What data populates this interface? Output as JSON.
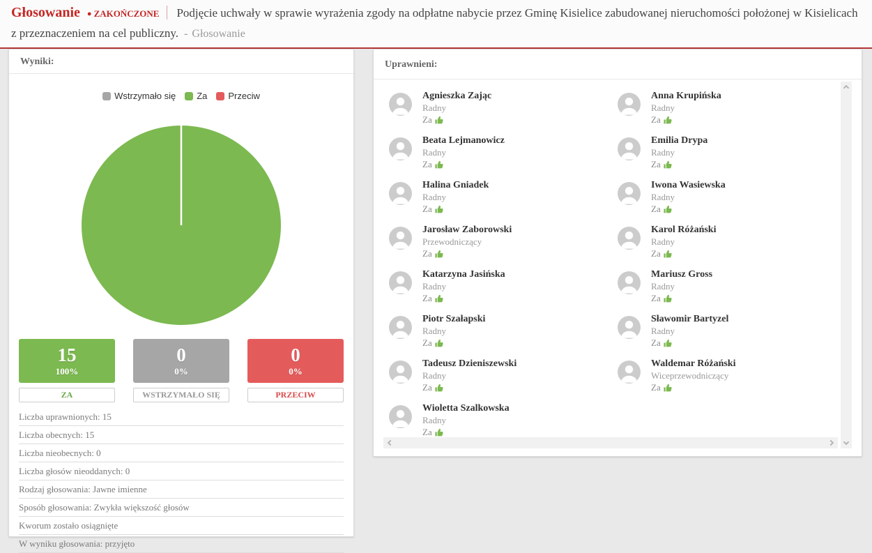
{
  "header": {
    "title": "Głosowanie",
    "status_bullet": "●",
    "status": "ZAKOŃCZONE",
    "subject": "Podjęcie uchwały w sprawie wyrażenia zgody na odpłatne nabycie przez Gminę Kisielice zabudowanej nieruchomości położonej w Kisielicach z przeznaczeniem na cel publiczny.",
    "suffix_separator": "-",
    "suffix": "Głosowanie"
  },
  "results_panel": {
    "title": "Wyniki:",
    "legend": [
      {
        "label": "Wstrzymało się",
        "color": "#a6a6a6"
      },
      {
        "label": "Za",
        "color": "#7cb950"
      },
      {
        "label": "Przeciw",
        "color": "#e45b5b"
      }
    ],
    "boxes": [
      {
        "count": "15",
        "percent": "100%",
        "label": "ZA",
        "color": "#7cb950",
        "label_color": "#6aa844"
      },
      {
        "count": "0",
        "percent": "0%",
        "label": "WSTRZYMAŁO SIĘ",
        "color": "#a6a6a6",
        "label_color": "#999999"
      },
      {
        "count": "0",
        "percent": "0%",
        "label": "PRZECIW",
        "color": "#e45b5b",
        "label_color": "#d94b4b"
      }
    ],
    "stats": [
      "Liczba uprawnionych: 15",
      "Liczba obecnych: 15",
      "Liczba nieobecnych: 0",
      "Liczba głosów nieoddanych: 0",
      "Rodzaj głosowania: Jawne imienne",
      "Sposób głosowania: Zwykła większość głosów",
      "Kworum zostało osiągnięte",
      "W wyniku głosowania: przyjęto"
    ]
  },
  "chart_data": {
    "type": "pie",
    "categories": [
      "Wstrzymało się",
      "Za",
      "Przeciw"
    ],
    "values": [
      0,
      15,
      0
    ],
    "colors": [
      "#a6a6a6",
      "#7cb950",
      "#e45b5b"
    ],
    "title": "",
    "legend_position": "top"
  },
  "voters_panel": {
    "title": "Uprawnieni:",
    "voters": [
      {
        "name": "Agnieszka Zając",
        "role": "Radny",
        "vote": "Za"
      },
      {
        "name": "Anna Krupińska",
        "role": "Radny",
        "vote": "Za"
      },
      {
        "name": "Beata Lejmanowicz",
        "role": "Radny",
        "vote": "Za"
      },
      {
        "name": "Emilia Drypa",
        "role": "Radny",
        "vote": "Za"
      },
      {
        "name": "Halina Gniadek",
        "role": "Radny",
        "vote": "Za"
      },
      {
        "name": "Iwona Wasiewska",
        "role": "Radny",
        "vote": "Za"
      },
      {
        "name": "Jarosław Zaborowski",
        "role": "Przewodniczący",
        "vote": "Za"
      },
      {
        "name": "Karol Różański",
        "role": "Radny",
        "vote": "Za"
      },
      {
        "name": "Katarzyna Jasińska",
        "role": "Radny",
        "vote": "Za"
      },
      {
        "name": "Mariusz Gross",
        "role": "Radny",
        "vote": "Za"
      },
      {
        "name": "Piotr Szałapski",
        "role": "Radny",
        "vote": "Za"
      },
      {
        "name": "Sławomir Bartyzel",
        "role": "Radny",
        "vote": "Za"
      },
      {
        "name": "Tadeusz Dzieniszewski",
        "role": "Radny",
        "vote": "Za"
      },
      {
        "name": "Waldemar Różański",
        "role": "Wiceprzewodniczący",
        "vote": "Za"
      },
      {
        "name": "Wioletta Szalkowska",
        "role": "Radny",
        "vote": "Za"
      }
    ]
  }
}
